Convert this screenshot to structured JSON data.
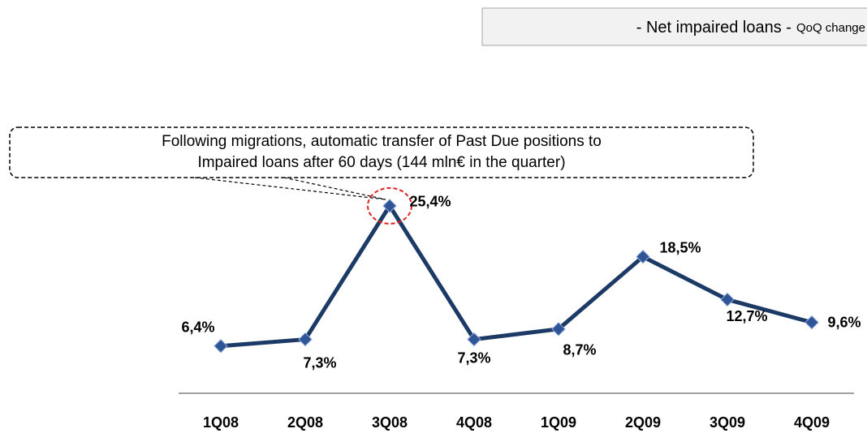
{
  "chart_data": {
    "type": "line",
    "title": "- Net impaired loans -",
    "subtitle": "QoQ change",
    "annotation": [
      "Following migrations, automatic transfer of Past Due positions to",
      "Impaired loans after 60 days (144 mln€ in the quarter)"
    ],
    "categories": [
      "1Q08",
      "2Q08",
      "3Q08",
      "4Q08",
      "1Q09",
      "2Q09",
      "3Q09",
      "4Q09"
    ],
    "series": [
      {
        "color": "#1c3a66",
        "marker_color": "#2f5597",
        "values": [
          6.4,
          7.3,
          25.4,
          7.3,
          8.7,
          18.5,
          12.7,
          9.6
        ],
        "value_labels": [
          "6,4%",
          "7,3%",
          "25,4%",
          "7,3%",
          "8,7%",
          "18,5%",
          "12,7%",
          "9,6%"
        ]
      }
    ],
    "ylim": [
      0,
      30
    ]
  }
}
